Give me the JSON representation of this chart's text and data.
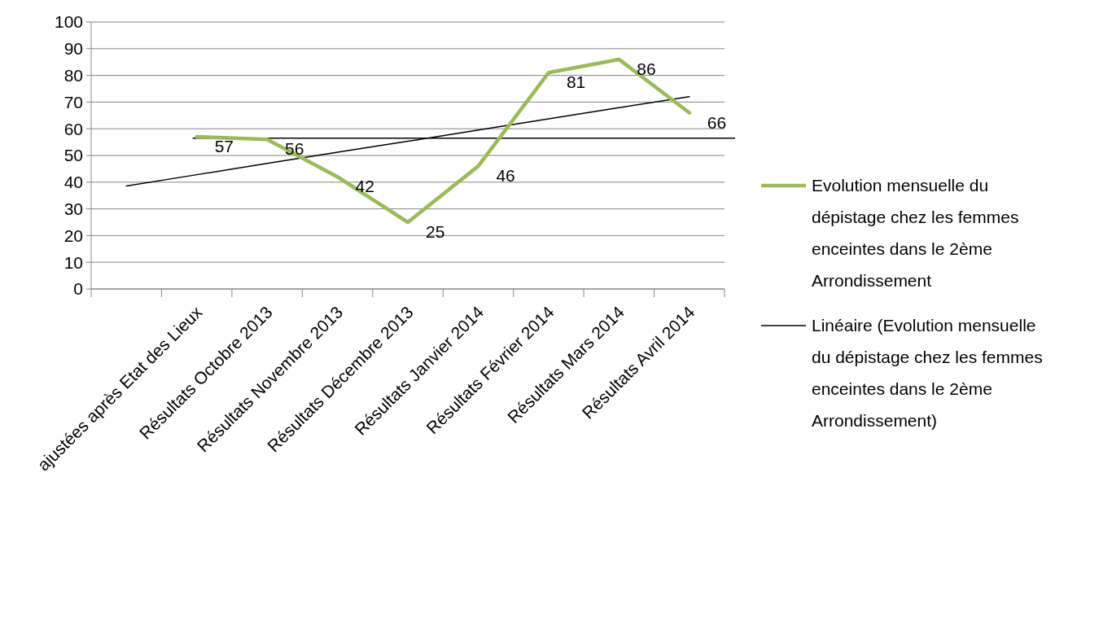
{
  "chart_data": {
    "type": "line",
    "categories": [
      null,
      "ajustées après Etat des Lieux",
      "Résultats Octobre 2013",
      "Résultats Novembre 2013",
      "Résultats Décembre 2013",
      "Résultats Janvier 2014",
      "Résultats Février 2014",
      "Résultats Mars 2014",
      "Résultats Avril 2014"
    ],
    "series": [
      {
        "name": "Evolution mensuelle du dépistage chez les femmes enceintes dans le 2ème Arrondissement",
        "color": "#9bbb59",
        "values": [
          null,
          57,
          56,
          42,
          25,
          46,
          81,
          86,
          66
        ],
        "value_labels": [
          null,
          "57",
          "56",
          "42",
          "25",
          "46",
          "81",
          "86",
          "66"
        ]
      },
      {
        "name": "Linéaire (Evolution mensuelle du dépistage chez les femmes enceintes dans le 2ème Arrondissement)",
        "color": "#000000",
        "line_style": "solid",
        "values": [
          38.6,
          42.8,
          47.0,
          51.2,
          55.3,
          59.5,
          63.7,
          67.9,
          72.0
        ]
      }
    ],
    "ylim": [
      0,
      100
    ],
    "yticks": [
      0,
      10,
      20,
      30,
      40,
      50,
      60,
      70,
      80,
      90,
      100
    ],
    "grid": "y",
    "legend": "right",
    "marker": "none",
    "ref_lines": [
      {
        "axis": "y",
        "value": 56.5,
        "color": "#000000"
      }
    ]
  }
}
